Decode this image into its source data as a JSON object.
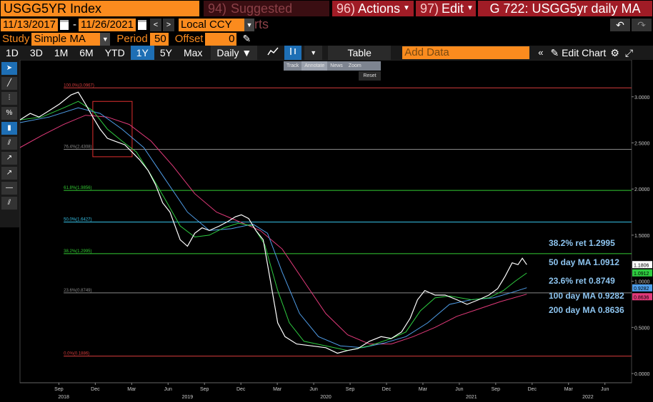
{
  "header": {
    "ticker": "USGG5YR Index",
    "suggested_num": "94)",
    "suggested_label": "Suggested Charts",
    "actions_num": "96)",
    "actions_label": "Actions",
    "edit_num": "97)",
    "edit_label": "Edit",
    "chart_title": "G 722: USGG5yr daily MA"
  },
  "range": {
    "start": "11/13/2017",
    "dash": "-",
    "end": "11/26/2021",
    "prev": "<",
    "next": ">",
    "currency": "Local CCY"
  },
  "study": {
    "label": "Study",
    "value": "Simple MA",
    "period_label": "Period",
    "period_value": "50",
    "offset_label": "Offset",
    "offset_value": "0"
  },
  "toolbar": {
    "periods": [
      "1D",
      "3D",
      "1M",
      "6M",
      "YTD",
      "1Y",
      "5Y",
      "Max"
    ],
    "active_period": "1Y",
    "frequency": "Daily ▼",
    "table_label": "Table",
    "add_data_placeholder": "Add Data",
    "edit_chart_label": "Edit Chart"
  },
  "mini_toolbar": {
    "items": [
      "Track",
      "Annotate",
      "News",
      "Zoom"
    ],
    "reset": "Reset"
  },
  "colors": {
    "price": "#ffffff",
    "ma50": "#2ecc40",
    "ma100": "#4f9de8",
    "ma200": "#e23a7a",
    "fib_100": "#d63c3c",
    "fib_76": "#888888",
    "fib_618": "#33cc33",
    "fib_50": "#36c0e6",
    "fib_382": "#33cc33",
    "fib_236": "#888888",
    "fib_0": "#d63c3c",
    "annot_text": "#8ec5f0",
    "accent_orange": "#fb8b1e",
    "box": "#e03030"
  },
  "chart_data": {
    "type": "line",
    "y_ticks": [
      "3.0000",
      "2.5000",
      "2.0000",
      "1.5000",
      "1.0000",
      "0.5000",
      "0.0000"
    ],
    "y_tick_values": [
      3.0,
      2.5,
      2.0,
      1.5,
      1.0,
      0.5,
      0.0
    ],
    "ylim": [
      -0.1,
      3.4
    ],
    "x_month_ticks": [
      {
        "label": "Sep",
        "t": 2018.667
      },
      {
        "label": "Dec",
        "t": 2018.917
      },
      {
        "label": "Mar",
        "t": 2019.167
      },
      {
        "label": "Jun",
        "t": 2019.417
      },
      {
        "label": "Sep",
        "t": 2019.667
      },
      {
        "label": "Dec",
        "t": 2019.917
      },
      {
        "label": "Mar",
        "t": 2020.167
      },
      {
        "label": "Jun",
        "t": 2020.417
      },
      {
        "label": "Sep",
        "t": 2020.667
      },
      {
        "label": "Dec",
        "t": 2020.917
      },
      {
        "label": "Mar",
        "t": 2021.167
      },
      {
        "label": "Jun",
        "t": 2021.417
      },
      {
        "label": "Sep",
        "t": 2021.667
      },
      {
        "label": "Dec",
        "t": 2021.917
      },
      {
        "label": "Mar",
        "t": 2022.167
      },
      {
        "label": "Jun",
        "t": 2022.417
      }
    ],
    "x_year_labels": [
      {
        "label": "2018",
        "t": 2018.7
      },
      {
        "label": "2019",
        "t": 2019.55
      },
      {
        "label": "2020",
        "t": 2020.5
      },
      {
        "label": "2021",
        "t": 2021.5
      },
      {
        "label": "2022",
        "t": 2022.3
      }
    ],
    "xlim": [
      2018.4,
      2022.6
    ],
    "fib_levels": [
      {
        "label": "100.0%(3.0967)",
        "value": 3.0967,
        "color_key": "fib_100"
      },
      {
        "label": "76.4%(2.4308)",
        "value": 2.4308,
        "color_key": "fib_76"
      },
      {
        "label": "61.8%(1.9856)",
        "value": 1.9856,
        "color_key": "fib_618"
      },
      {
        "label": "50.0%(1.6427)",
        "value": 1.6427,
        "color_key": "fib_50"
      },
      {
        "label": "38.2%(1.2995)",
        "value": 1.2995,
        "color_key": "fib_382"
      },
      {
        "label": "23.6%(0.8749)",
        "value": 0.8749,
        "color_key": "fib_236"
      },
      {
        "label": "0.0%(0.1886)",
        "value": 0.1886,
        "color_key": "fib_0"
      }
    ],
    "fib_x_start": 2018.7,
    "annotations": [
      {
        "text": "38.2% ret 1.2995",
        "value": 1.2995
      },
      {
        "text": "50 day MA 1.0912",
        "value": 1.0912
      },
      {
        "text": "23.6% ret 0.8749",
        "value": 0.8749
      },
      {
        "text": "100 day MA 0.9282",
        "value": 0.9282
      },
      {
        "text": "200 day MA 0.8636",
        "value": 0.8636
      }
    ],
    "last_value_tags": [
      {
        "text": "1.1806",
        "value": 1.1806,
        "bg": "#ffffff",
        "fg": "#000000"
      },
      {
        "text": "1.0912",
        "value": 1.0912,
        "bg": "#2ecc40",
        "fg": "#000000"
      },
      {
        "text": "0.9282",
        "value": 0.9282,
        "bg": "#4f9de8",
        "fg": "#000000"
      },
      {
        "text": "0.8636",
        "value": 0.8636,
        "bg": "#e23a7a",
        "fg": "#000000"
      }
    ],
    "highlight_box": {
      "t0": 2018.9,
      "t1": 2019.17,
      "y0": 2.35,
      "y1": 2.95
    },
    "series": [
      {
        "name": "USGG5YR",
        "color_key": "price",
        "points": [
          [
            2018.4,
            2.75
          ],
          [
            2018.47,
            2.82
          ],
          [
            2018.53,
            2.78
          ],
          [
            2018.6,
            2.85
          ],
          [
            2018.67,
            2.92
          ],
          [
            2018.75,
            3.02
          ],
          [
            2018.8,
            3.05
          ],
          [
            2018.85,
            2.92
          ],
          [
            2018.9,
            2.78
          ],
          [
            2018.95,
            2.65
          ],
          [
            2019.0,
            2.55
          ],
          [
            2019.05,
            2.52
          ],
          [
            2019.12,
            2.48
          ],
          [
            2019.17,
            2.4
          ],
          [
            2019.22,
            2.32
          ],
          [
            2019.28,
            2.2
          ],
          [
            2019.33,
            2.05
          ],
          [
            2019.38,
            1.85
          ],
          [
            2019.43,
            1.75
          ],
          [
            2019.5,
            1.45
          ],
          [
            2019.55,
            1.38
          ],
          [
            2019.6,
            1.52
          ],
          [
            2019.65,
            1.58
          ],
          [
            2019.7,
            1.55
          ],
          [
            2019.77,
            1.6
          ],
          [
            2019.83,
            1.65
          ],
          [
            2019.88,
            1.7
          ],
          [
            2019.92,
            1.72
          ],
          [
            2019.97,
            1.68
          ],
          [
            2020.02,
            1.55
          ],
          [
            2020.07,
            1.45
          ],
          [
            2020.12,
            1.0
          ],
          [
            2020.17,
            0.55
          ],
          [
            2020.22,
            0.4
          ],
          [
            2020.3,
            0.32
          ],
          [
            2020.4,
            0.3
          ],
          [
            2020.5,
            0.28
          ],
          [
            2020.58,
            0.22
          ],
          [
            2020.65,
            0.25
          ],
          [
            2020.72,
            0.27
          ],
          [
            2020.8,
            0.35
          ],
          [
            2020.88,
            0.4
          ],
          [
            2020.95,
            0.38
          ],
          [
            2021.02,
            0.45
          ],
          [
            2021.08,
            0.6
          ],
          [
            2021.13,
            0.8
          ],
          [
            2021.18,
            0.9
          ],
          [
            2021.25,
            0.85
          ],
          [
            2021.32,
            0.85
          ],
          [
            2021.4,
            0.8
          ],
          [
            2021.47,
            0.75
          ],
          [
            2021.55,
            0.8
          ],
          [
            2021.62,
            0.85
          ],
          [
            2021.68,
            0.92
          ],
          [
            2021.73,
            1.05
          ],
          [
            2021.78,
            1.2
          ],
          [
            2021.82,
            1.18
          ],
          [
            2021.85,
            1.25
          ],
          [
            2021.88,
            1.18
          ]
        ]
      },
      {
        "name": "50 day MA",
        "color_key": "ma50",
        "points": [
          [
            2018.4,
            2.75
          ],
          [
            2018.55,
            2.78
          ],
          [
            2018.7,
            2.88
          ],
          [
            2018.8,
            2.95
          ],
          [
            2018.9,
            2.85
          ],
          [
            2019.0,
            2.65
          ],
          [
            2019.1,
            2.52
          ],
          [
            2019.2,
            2.4
          ],
          [
            2019.3,
            2.15
          ],
          [
            2019.4,
            1.88
          ],
          [
            2019.5,
            1.6
          ],
          [
            2019.6,
            1.48
          ],
          [
            2019.7,
            1.5
          ],
          [
            2019.8,
            1.58
          ],
          [
            2019.9,
            1.63
          ],
          [
            2020.0,
            1.6
          ],
          [
            2020.08,
            1.4
          ],
          [
            2020.17,
            0.9
          ],
          [
            2020.25,
            0.55
          ],
          [
            2020.35,
            0.35
          ],
          [
            2020.5,
            0.3
          ],
          [
            2020.65,
            0.25
          ],
          [
            2020.8,
            0.3
          ],
          [
            2020.95,
            0.38
          ],
          [
            2021.05,
            0.45
          ],
          [
            2021.15,
            0.68
          ],
          [
            2021.25,
            0.82
          ],
          [
            2021.35,
            0.84
          ],
          [
            2021.5,
            0.8
          ],
          [
            2021.62,
            0.82
          ],
          [
            2021.72,
            0.9
          ],
          [
            2021.8,
            1.0
          ],
          [
            2021.88,
            1.09
          ]
        ]
      },
      {
        "name": "100 day MA",
        "color_key": "ma100",
        "points": [
          [
            2018.4,
            2.72
          ],
          [
            2018.6,
            2.78
          ],
          [
            2018.8,
            2.88
          ],
          [
            2018.95,
            2.82
          ],
          [
            2019.1,
            2.65
          ],
          [
            2019.25,
            2.45
          ],
          [
            2019.4,
            2.1
          ],
          [
            2019.55,
            1.75
          ],
          [
            2019.7,
            1.55
          ],
          [
            2019.85,
            1.57
          ],
          [
            2020.0,
            1.62
          ],
          [
            2020.1,
            1.52
          ],
          [
            2020.2,
            1.1
          ],
          [
            2020.32,
            0.65
          ],
          [
            2020.45,
            0.4
          ],
          [
            2020.6,
            0.3
          ],
          [
            2020.75,
            0.28
          ],
          [
            2020.9,
            0.33
          ],
          [
            2021.05,
            0.4
          ],
          [
            2021.2,
            0.55
          ],
          [
            2021.35,
            0.75
          ],
          [
            2021.5,
            0.8
          ],
          [
            2021.65,
            0.82
          ],
          [
            2021.78,
            0.88
          ],
          [
            2021.88,
            0.93
          ]
        ]
      },
      {
        "name": "200 day MA",
        "color_key": "ma200",
        "points": [
          [
            2018.4,
            2.45
          ],
          [
            2018.55,
            2.58
          ],
          [
            2018.7,
            2.7
          ],
          [
            2018.85,
            2.8
          ],
          [
            2019.0,
            2.78
          ],
          [
            2019.15,
            2.7
          ],
          [
            2019.3,
            2.52
          ],
          [
            2019.45,
            2.25
          ],
          [
            2019.6,
            1.95
          ],
          [
            2019.75,
            1.75
          ],
          [
            2019.9,
            1.65
          ],
          [
            2020.05,
            1.55
          ],
          [
            2020.2,
            1.35
          ],
          [
            2020.35,
            1.0
          ],
          [
            2020.5,
            0.65
          ],
          [
            2020.65,
            0.42
          ],
          [
            2020.8,
            0.32
          ],
          [
            2020.95,
            0.32
          ],
          [
            2021.1,
            0.4
          ],
          [
            2021.25,
            0.5
          ],
          [
            2021.4,
            0.62
          ],
          [
            2021.55,
            0.7
          ],
          [
            2021.7,
            0.78
          ],
          [
            2021.88,
            0.86
          ]
        ]
      }
    ]
  }
}
